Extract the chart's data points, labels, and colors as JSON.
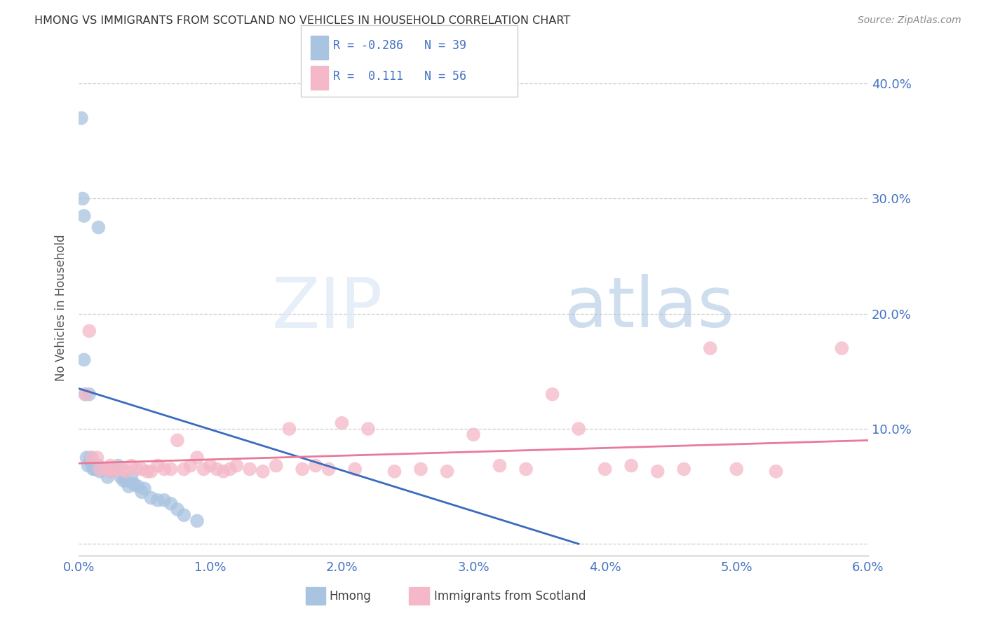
{
  "title": "HMONG VS IMMIGRANTS FROM SCOTLAND NO VEHICLES IN HOUSEHOLD CORRELATION CHART",
  "source": "Source: ZipAtlas.com",
  "ylabel": "No Vehicles in Household",
  "xlim": [
    0.0,
    6.0
  ],
  "ylim": [
    -1.0,
    42.0
  ],
  "yticks": [
    0.0,
    10.0,
    20.0,
    30.0,
    40.0
  ],
  "ytick_labels": [
    "",
    "10.0%",
    "20.0%",
    "30.0%",
    "40.0%"
  ],
  "xticks": [
    0.0,
    1.0,
    2.0,
    3.0,
    4.0,
    5.0,
    6.0
  ],
  "xtick_labels": [
    "0.0%",
    "1.0%",
    "2.0%",
    "3.0%",
    "4.0%",
    "5.0%",
    "6.0%"
  ],
  "hmong_color": "#a8c4e0",
  "scotland_color": "#f4b8c8",
  "trendline_hmong_color": "#3a6bbf",
  "trendline_scotland_color": "#e87a9a",
  "hmong_R": -0.286,
  "hmong_N": 39,
  "scotland_R": 0.111,
  "scotland_N": 56,
  "hmong_trend_x": [
    0.0,
    3.8
  ],
  "hmong_trend_y": [
    13.5,
    0.0
  ],
  "scotland_trend_x": [
    0.0,
    6.0
  ],
  "scotland_trend_y": [
    7.0,
    9.0
  ],
  "watermark_zip": "ZIP",
  "watermark_atlas": "atlas",
  "background_color": "#ffffff",
  "grid_color": "#cccccc",
  "hmong_x": [
    0.02,
    0.15,
    0.03,
    0.04,
    0.04,
    0.05,
    0.06,
    0.07,
    0.08,
    0.09,
    0.1,
    0.11,
    0.12,
    0.14,
    0.15,
    0.16,
    0.18,
    0.2,
    0.22,
    0.25,
    0.25,
    0.28,
    0.3,
    0.32,
    0.34,
    0.36,
    0.38,
    0.4,
    0.42,
    0.45,
    0.48,
    0.5,
    0.55,
    0.6,
    0.65,
    0.7,
    0.75,
    0.8,
    0.9
  ],
  "hmong_y": [
    37.0,
    27.5,
    30.0,
    28.5,
    16.0,
    13.0,
    7.5,
    6.8,
    13.0,
    7.5,
    6.8,
    6.5,
    6.5,
    6.5,
    6.8,
    6.3,
    6.5,
    6.5,
    5.8,
    6.5,
    6.3,
    6.5,
    6.8,
    5.8,
    5.5,
    5.5,
    5.0,
    5.8,
    5.2,
    5.0,
    4.5,
    4.8,
    4.0,
    3.8,
    3.8,
    3.5,
    3.0,
    2.5,
    2.0
  ],
  "scotland_x": [
    0.05,
    0.08,
    0.1,
    0.14,
    0.16,
    0.2,
    0.22,
    0.24,
    0.26,
    0.3,
    0.33,
    0.36,
    0.4,
    0.44,
    0.48,
    0.52,
    0.55,
    0.6,
    0.65,
    0.7,
    0.75,
    0.8,
    0.85,
    0.9,
    0.95,
    1.0,
    1.05,
    1.1,
    1.15,
    1.2,
    1.3,
    1.4,
    1.5,
    1.6,
    1.7,
    1.8,
    1.9,
    2.0,
    2.1,
    2.2,
    2.4,
    2.6,
    2.8,
    3.0,
    3.2,
    3.4,
    3.6,
    3.8,
    4.0,
    4.2,
    4.4,
    4.6,
    4.8,
    5.0,
    5.3,
    5.8
  ],
  "scotland_y": [
    13.0,
    18.5,
    7.5,
    7.5,
    6.5,
    6.5,
    6.5,
    6.8,
    6.3,
    6.5,
    6.5,
    6.3,
    6.8,
    6.5,
    6.5,
    6.3,
    6.3,
    6.8,
    6.5,
    6.5,
    9.0,
    6.5,
    6.8,
    7.5,
    6.5,
    6.8,
    6.5,
    6.3,
    6.5,
    6.8,
    6.5,
    6.3,
    6.8,
    10.0,
    6.5,
    6.8,
    6.5,
    10.5,
    6.5,
    10.0,
    6.3,
    6.5,
    6.3,
    9.5,
    6.8,
    6.5,
    13.0,
    10.0,
    6.5,
    6.8,
    6.3,
    6.5,
    17.0,
    6.5,
    6.3,
    17.0
  ]
}
